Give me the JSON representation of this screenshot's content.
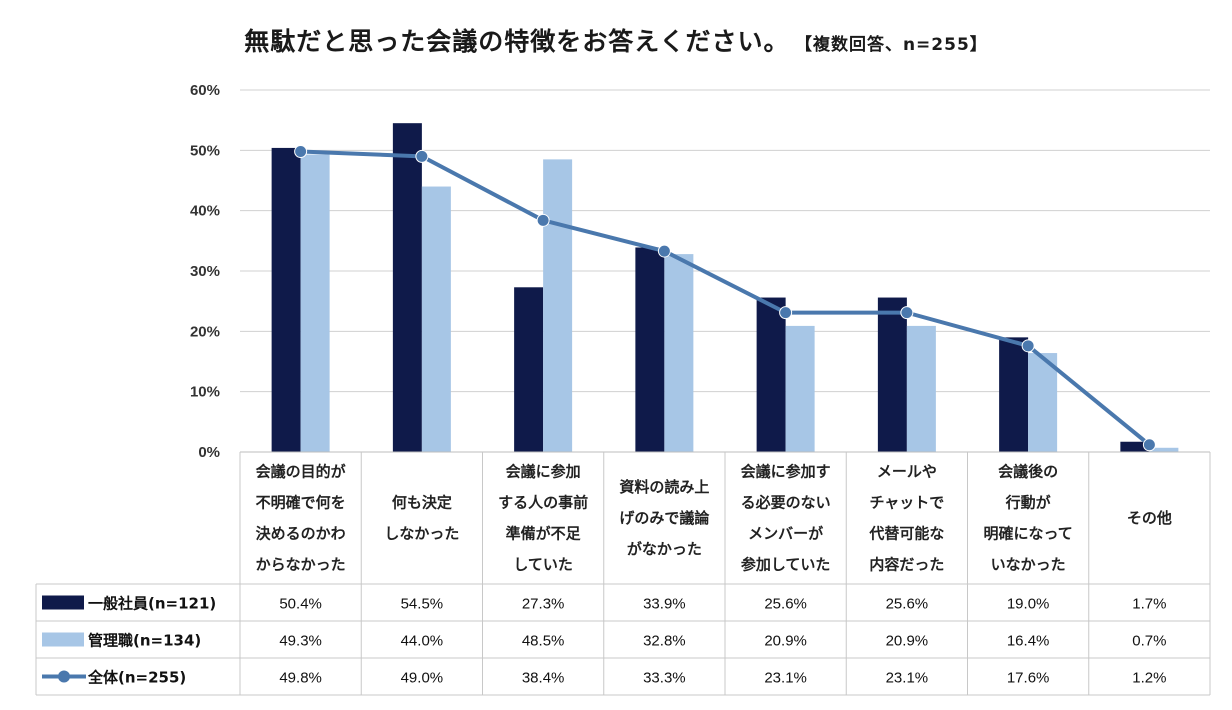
{
  "title": "無駄だと思った会議の特徴をお答えください。",
  "subtitle": "【複数回答、n=255】",
  "chart_data": {
    "type": "bar",
    "title": "無駄だと思った会議の特徴をお答えください。",
    "ylim": [
      0,
      60
    ],
    "yticks": [
      "0%",
      "10%",
      "20%",
      "30%",
      "40%",
      "50%",
      "60%"
    ],
    "yticks_values": [
      0,
      10,
      20,
      30,
      40,
      50,
      60
    ],
    "grid": true,
    "categories": [
      [
        "会議の目的が",
        "不明確で何を",
        "決めるのかわ",
        "からなかった"
      ],
      [
        "何も決定",
        "しなかった"
      ],
      [
        "会議に参加",
        "する人の事前",
        "準備が不足",
        "していた"
      ],
      [
        "資料の読み上",
        "げのみで議論",
        "がなかった"
      ],
      [
        "会議に参加す",
        "る必要のない",
        "メンバーが",
        "参加していた"
      ],
      [
        "メールや",
        "チャットで",
        "代替可能な",
        "内容だった"
      ],
      [
        "会議後の",
        "行動が",
        "明確になって",
        "いなかった"
      ],
      [
        "その他"
      ]
    ],
    "series": [
      {
        "name": "一般社員(n=121)",
        "type": "bar",
        "color": "#0f1a4a",
        "values": [
          50.4,
          54.5,
          27.3,
          33.9,
          25.6,
          25.6,
          19.0,
          1.7
        ],
        "labels": [
          "50.4%",
          "54.5%",
          "27.3%",
          "33.9%",
          "25.6%",
          "25.6%",
          "19.0%",
          "1.7%"
        ]
      },
      {
        "name": "管理職(n=134)",
        "type": "bar",
        "color": "#a7c6e6",
        "values": [
          49.3,
          44.0,
          48.5,
          32.8,
          20.9,
          20.9,
          16.4,
          0.7
        ],
        "labels": [
          "49.3%",
          "44.0%",
          "48.5%",
          "32.8%",
          "20.9%",
          "20.9%",
          "16.4%",
          "0.7%"
        ]
      },
      {
        "name": "全体(n=255)",
        "type": "line",
        "color": "#4a78ad",
        "values": [
          49.8,
          49.0,
          38.4,
          33.3,
          23.1,
          23.1,
          17.6,
          1.2
        ],
        "labels": [
          "49.8%",
          "49.0%",
          "38.4%",
          "33.3%",
          "23.1%",
          "23.1%",
          "17.6%",
          "1.2%"
        ]
      }
    ]
  }
}
